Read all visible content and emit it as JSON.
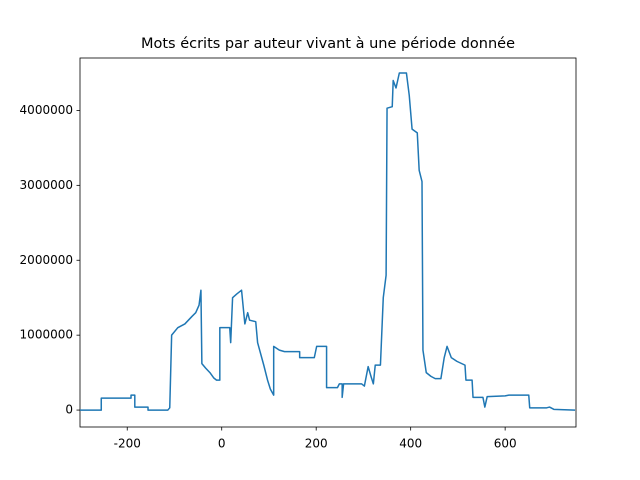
{
  "chart_data": {
    "type": "line",
    "title": "Mots écrits par auteur vivant à une période donnée",
    "x": [
      -300,
      -255,
      -255,
      -192,
      -192,
      -184,
      -184,
      -156,
      -156,
      -114,
      -110,
      -106,
      -93,
      -78,
      -63,
      -55,
      -48,
      -44,
      -42,
      -34,
      -25,
      -17,
      -11,
      -4,
      -4,
      17,
      19,
      23,
      32,
      42,
      49,
      55,
      59,
      72,
      76,
      89,
      97,
      103,
      110,
      110,
      122,
      133,
      165,
      165,
      196,
      201,
      222,
      222,
      245,
      249,
      255,
      255,
      258,
      296,
      302,
      310,
      316,
      321,
      325,
      336,
      342,
      348,
      350,
      361,
      363,
      369,
      376,
      391,
      397,
      403,
      414,
      418,
      424,
      426,
      433,
      443,
      452,
      464,
      471,
      477,
      486,
      498,
      515,
      517,
      530,
      532,
      553,
      557,
      562,
      600,
      608,
      650,
      652,
      688,
      694,
      703,
      748
    ],
    "series": [
      {
        "color": "#1f77b4",
        "values": [
          0,
          0,
          160000,
          160000,
          200000,
          200000,
          40000,
          40000,
          0,
          0,
          30000,
          1000000,
          1100000,
          1150000,
          1250000,
          1300000,
          1400000,
          1600000,
          620000,
          560000,
          500000,
          430000,
          400000,
          400000,
          1100000,
          1100000,
          900000,
          1500000,
          1550000,
          1600000,
          1150000,
          1300000,
          1200000,
          1180000,
          900000,
          600000,
          400000,
          280000,
          200000,
          850000,
          800000,
          780000,
          780000,
          700000,
          700000,
          850000,
          850000,
          300000,
          300000,
          350000,
          350000,
          170000,
          350000,
          350000,
          320000,
          580000,
          450000,
          350000,
          600000,
          600000,
          1500000,
          1800000,
          4030000,
          4050000,
          4400000,
          4300000,
          4500000,
          4500000,
          4200000,
          3750000,
          3700000,
          3200000,
          3050000,
          800000,
          500000,
          450000,
          420000,
          420000,
          700000,
          850000,
          700000,
          650000,
          600000,
          400000,
          400000,
          170000,
          170000,
          40000,
          180000,
          190000,
          200000,
          200000,
          30000,
          30000,
          40000,
          10000,
          0
        ]
      }
    ],
    "xlim": [
      -300,
      750
    ],
    "xticks": [
      -200,
      0,
      200,
      400,
      600
    ],
    "ylim": [
      -226000,
      4700000
    ],
    "yticks": [
      0,
      1000000,
      2000000,
      3000000,
      4000000
    ],
    "grid": false
  }
}
